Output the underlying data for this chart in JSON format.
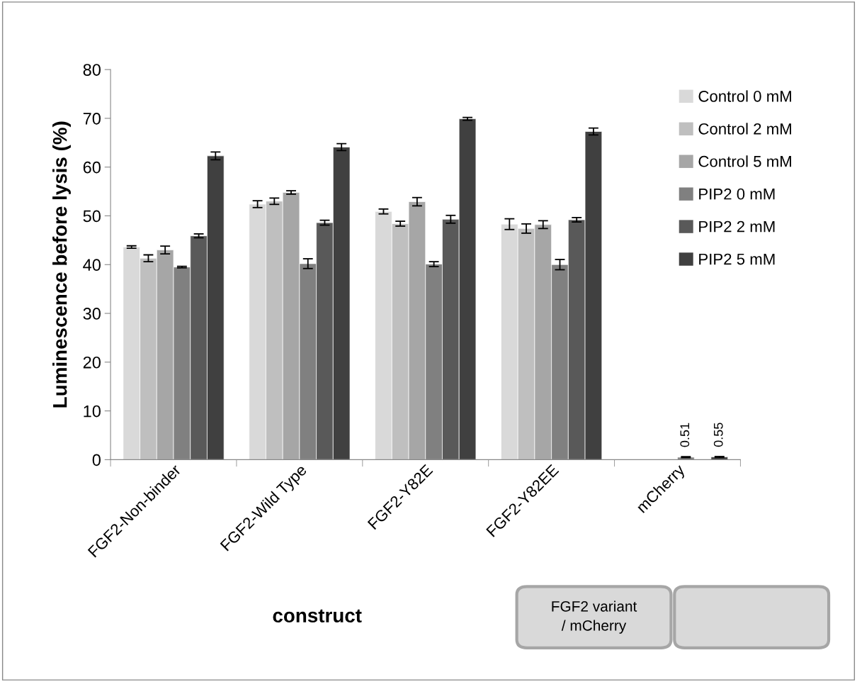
{
  "chart_data": {
    "type": "bar",
    "categories": [
      "FGF2-Non-binder",
      "FGF2-Wild Type",
      "FGF2-Y82E",
      "FGF2-Y82EE",
      "mCherry"
    ],
    "series": [
      {
        "name": "Control 0 mM",
        "color": "#d9d9d9",
        "values": [
          43.6,
          52.4,
          50.9,
          48.3,
          null
        ],
        "errors": [
          0.25,
          0.7,
          0.5,
          1.1,
          null
        ]
      },
      {
        "name": "Control 2 mM",
        "color": "#bfbfbf",
        "values": [
          41.3,
          53.0,
          48.4,
          47.4,
          null
        ],
        "errors": [
          0.7,
          0.65,
          0.5,
          0.95,
          null
        ]
      },
      {
        "name": "Control 5 mM",
        "color": "#a6a6a6",
        "values": [
          43.0,
          54.8,
          52.9,
          48.2,
          null
        ],
        "errors": [
          0.8,
          0.35,
          0.85,
          0.8,
          null
        ]
      },
      {
        "name": "PIP2 0 mM",
        "color": "#808080",
        "values": [
          39.5,
          40.2,
          40.1,
          40.0,
          0.51
        ],
        "errors": [
          0.15,
          1.0,
          0.5,
          1.05,
          0.1
        ],
        "value_labels": [
          null,
          null,
          null,
          null,
          "0.51"
        ]
      },
      {
        "name": "PIP2 2 mM",
        "color": "#595959",
        "values": [
          45.9,
          48.6,
          49.3,
          49.2,
          null
        ],
        "errors": [
          0.4,
          0.5,
          0.8,
          0.45,
          null
        ]
      },
      {
        "name": "PIP2 5 mM",
        "color": "#404040",
        "values": [
          62.3,
          64.1,
          69.9,
          67.3,
          0.55
        ],
        "errors": [
          0.8,
          0.7,
          0.3,
          0.7,
          0.1
        ],
        "value_labels": [
          null,
          null,
          null,
          null,
          "0.55"
        ]
      }
    ],
    "ylabel": "Luminescence before lysis (%)",
    "xlabel": "construct",
    "ylim": [
      0,
      80
    ],
    "yticks": [
      0,
      10,
      20,
      30,
      40,
      50,
      60,
      70,
      80
    ],
    "grid": false,
    "legend": "right",
    "annotations": [
      "FGF2 variant\n/ mCherry"
    ]
  }
}
